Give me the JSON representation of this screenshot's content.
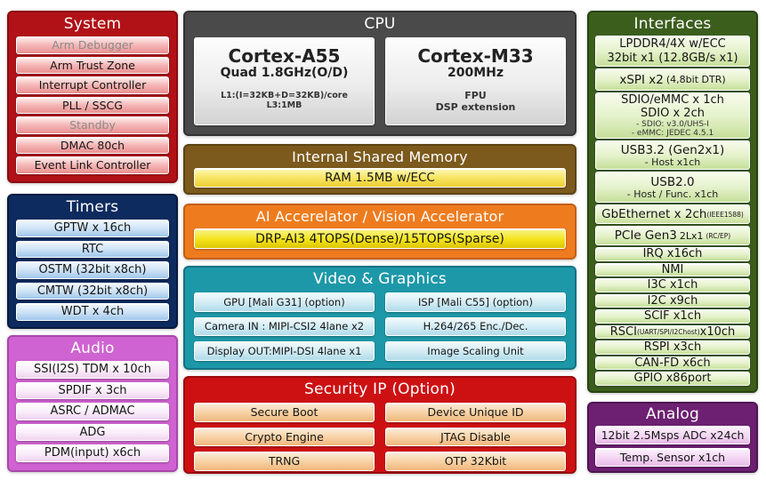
{
  "colors": {
    "background": "#ffffff",
    "system_header": "#b11217",
    "cpu_header": "#4a4a4a",
    "timers_header": "#0d2b5e",
    "audio_header": "#cf63d1",
    "memory_header": "#7c5a1d",
    "ai_header": "#ee7c1f",
    "video_header": "#1d98a9",
    "security_header": "#cd1113",
    "interfaces_header": "#3c5e1d",
    "analog_header": "#6d2071"
  },
  "sections": {
    "system": {
      "title": "System",
      "items": [
        "Arm Debugger",
        "Arm Trust Zone",
        "Interrupt Controller",
        "PLL / SSCG",
        "Standby",
        "DMAC 80ch",
        "Event Link Controller"
      ]
    },
    "timers": {
      "title": "Timers",
      "items": [
        "GPTW x 16ch",
        "RTC",
        "OSTM (32bit x8ch)",
        "CMTW (32bit x8ch)",
        "WDT x 4ch"
      ]
    },
    "audio": {
      "title": "Audio",
      "items": [
        "SSI(I2S) TDM x 10ch",
        "SPDIF x 3ch",
        "ASRC / ADMAC",
        "ADG",
        "PDM(input) x6ch"
      ]
    },
    "cpu": {
      "title": "CPU",
      "a55": {
        "name": "Cortex-A55",
        "clock": "Quad 1.8GHz(O/D)",
        "note1": "L1:(I=32KB+D=32KB)/core",
        "note2": "L3:1MB"
      },
      "m33": {
        "name": "Cortex-M33",
        "clock": "200MHz",
        "note1": "FPU",
        "note2": "DSP extension"
      }
    },
    "memory": {
      "title": "Internal Shared Memory",
      "item": "RAM 1.5MB w/ECC"
    },
    "ai": {
      "title": "AI Accerelator / Vision Accelerator",
      "item": "DRP-AI3 4TOPS(Dense)/15TOPS(Sparse)"
    },
    "video": {
      "title": "Video & Graphics",
      "left": [
        "GPU [Mali G31] (option)",
        "Camera IN : MIPI-CSI2 4lane x2",
        "Display OUT:MIPI-DSI 4lane x1"
      ],
      "right": [
        "ISP [Mali C55] (option)",
        "H.264/265 Enc./Dec.",
        "Image Scaling Unit"
      ]
    },
    "security": {
      "title": "Security IP (Option)",
      "left": [
        "Secure Boot",
        "Crypto Engine",
        "TRNG"
      ],
      "right": [
        "Device Unique ID",
        "JTAG Disable",
        "OTP 32Kbit"
      ]
    },
    "interfaces": {
      "title": "Interfaces",
      "lpddr": {
        "line1": "LPDDR4/4X w/ECC",
        "line2": "32bit x1 (12.8GB/s x1)"
      },
      "xspi": {
        "main": "xSPI x2",
        "suffix": "(4,8bit DTR)"
      },
      "sdio": {
        "line1": "SDIO/eMMC x 1ch",
        "line2": "SDIO x 2ch",
        "note1": "- SDIO: v3.0/UHS-I",
        "note2": "- eMMC: JEDEC 4.5.1"
      },
      "usb3": {
        "main": "USB3.2 (Gen2x1)",
        "note": "- Host x1ch"
      },
      "usb2": {
        "main": "USB2.0",
        "note": "- Host / Func. x1ch"
      },
      "gbe": {
        "main": "GbEthernet x 2ch",
        "suffix": "(IEEE1588)"
      },
      "pcie": {
        "main": "PCIe Gen3",
        "mid": "2Lx1",
        "suffix": "(RC/EP)"
      },
      "rows1": [
        "IRQ x16ch",
        "NMI",
        "I3C  x1ch",
        "I2C  x9ch",
        "SCIF x1ch"
      ],
      "rsci": {
        "pre": "RSCI",
        "tiny": "(UART/SPI/I2Chost)",
        "post": "x10ch"
      },
      "rows2": [
        "RSPI x3ch",
        "CAN-FD x6ch",
        "GPIO x86port"
      ]
    },
    "analog": {
      "title": "Analog",
      "items": [
        "12bit 2.5Msps ADC x24ch",
        "Temp. Sensor x1ch"
      ]
    }
  }
}
